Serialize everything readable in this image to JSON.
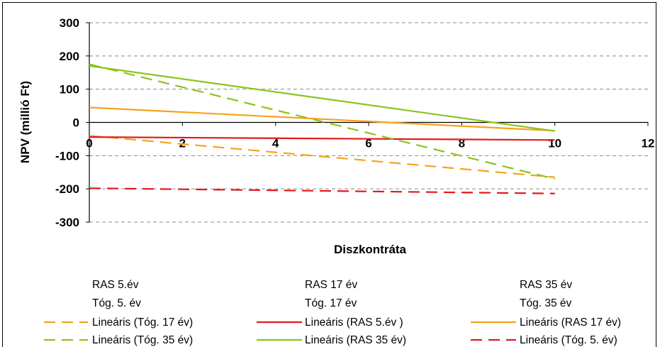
{
  "chart_data": {
    "type": "line",
    "title": "",
    "xlabel": "Diszkontráta",
    "ylabel": "NPV (millió Ft)",
    "xlim": [
      0,
      12
    ],
    "ylim": [
      -300,
      300
    ],
    "x_ticks": [
      "0",
      "2",
      "4",
      "6",
      "8",
      "10",
      "12"
    ],
    "y_ticks": [
      "300",
      "200",
      "100",
      "0",
      "-100",
      "-200",
      "-300"
    ],
    "grid": "horizontal-dashed",
    "legend_placement": "bottom",
    "legend_unmarked": [
      "RAS 5.év",
      "RAS 17 év",
      "RAS 35 év",
      "Tóg. 5. év",
      "Tóg. 17 év",
      "Tóg. 35 év"
    ],
    "series": [
      {
        "name": "Lineáris (Tóg. 17 év)",
        "color": "#f7a21b",
        "dash": "dashed",
        "x": [
          0,
          10
        ],
        "y": [
          -40,
          -165
        ]
      },
      {
        "name": "Lineáris (RAS 5.év )",
        "color": "#e3191c",
        "dash": "solid",
        "x": [
          0,
          10
        ],
        "y": [
          -44,
          -53
        ]
      },
      {
        "name": "Lineáris (RAS 17 év)",
        "color": "#f7a21b",
        "dash": "solid",
        "x": [
          0,
          10
        ],
        "y": [
          45,
          -25
        ]
      },
      {
        "name": "Lineáris (Tóg. 35 év)",
        "color": "#8cc31e",
        "dash": "dashed",
        "x": [
          0,
          10
        ],
        "y": [
          175,
          -170
        ]
      },
      {
        "name": "Lineáris (RAS 35 év)",
        "color": "#8cc31e",
        "dash": "solid",
        "x": [
          0,
          10
        ],
        "y": [
          170,
          -26
        ]
      },
      {
        "name": "Lineáris (Tóg. 5. év)",
        "color": "#e3191c",
        "dash": "dashed",
        "x": [
          0,
          10
        ],
        "y": [
          -198,
          -214
        ]
      }
    ]
  }
}
